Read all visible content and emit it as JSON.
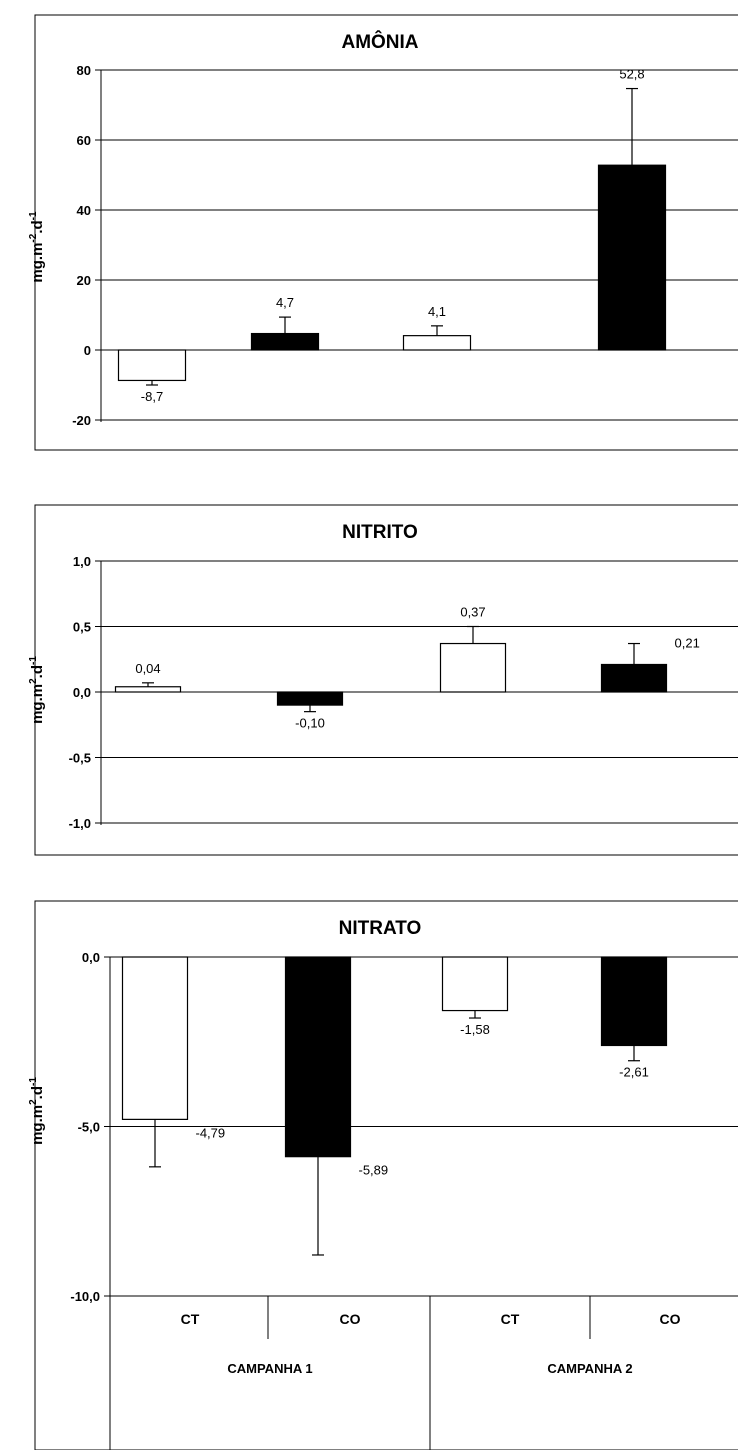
{
  "chart_data": [
    {
      "type": "bar",
      "title": "AMÔNIA",
      "ylabel": "mg.m-2.d-1",
      "ylabel_parts": {
        "base1": "mg.m",
        "sup1": "-2",
        "base2": ".d",
        "sup2": "-1"
      },
      "ylim": [
        -20,
        80
      ],
      "yticks": [
        -20,
        0,
        20,
        40,
        60,
        80
      ],
      "ytick_labels": [
        "-20",
        "0",
        "20",
        "40",
        "60",
        "80"
      ],
      "grid": true,
      "categories": [
        "CT",
        "CO",
        "CT",
        "CO"
      ],
      "groups": [
        "CAMPANHA 1",
        "CAMPANHA 2"
      ],
      "bar_colors": [
        "#ffffff",
        "#000000",
        "#ffffff",
        "#000000"
      ],
      "values": [
        -8.7,
        4.7,
        4.1,
        52.8
      ],
      "value_labels": [
        "-8,7",
        "4,7",
        "4,1",
        "52,8"
      ],
      "errors": [
        1.3,
        4.7,
        2.8,
        21.9
      ]
    },
    {
      "type": "bar",
      "title": "NITRITO",
      "ylabel": "mg.m2.d-1",
      "ylabel_parts": {
        "base1": "mg.m",
        "sup1": "2",
        "base2": ".d",
        "sup2": "-1"
      },
      "ylim": [
        -1.0,
        1.0
      ],
      "yticks": [
        -1.0,
        -0.5,
        0.0,
        0.5,
        1.0
      ],
      "ytick_labels": [
        "-1,0",
        "-0,5",
        "0,0",
        "0,5",
        "1,0"
      ],
      "grid": true,
      "categories": [
        "CT",
        "CO",
        "CT",
        "CO"
      ],
      "groups": [
        "CAMPANHA 1",
        "CAMPANHA 2"
      ],
      "bar_colors": [
        "#ffffff",
        "#000000",
        "#ffffff",
        "#000000"
      ],
      "values": [
        0.04,
        -0.1,
        0.37,
        0.21
      ],
      "value_labels": [
        "0,04",
        "-0,10",
        "0,37",
        "0,21"
      ],
      "errors": [
        0.03,
        0.05,
        0.13,
        0.16
      ]
    },
    {
      "type": "bar",
      "title": "NITRATO",
      "ylabel": "mg.m2.d-1",
      "ylabel_parts": {
        "base1": "mg.m",
        "sup1": "2",
        "base2": ".d",
        "sup2": "-1"
      },
      "ylim": [
        -10.0,
        0.0
      ],
      "yticks": [
        -10.0,
        -5.0,
        0.0
      ],
      "ytick_labels": [
        "-10,0",
        "-5,0",
        "0,0"
      ],
      "grid": true,
      "categories": [
        "CT",
        "CO",
        "CT",
        "CO"
      ],
      "groups": [
        "CAMPANHA 1",
        "CAMPANHA 2"
      ],
      "bar_colors": [
        "#ffffff",
        "#000000",
        "#ffffff",
        "#000000"
      ],
      "values": [
        -4.79,
        -5.89,
        -1.58,
        -2.61
      ],
      "value_labels": [
        "-4,79",
        "-5,89",
        "-1,58",
        "-2,61"
      ],
      "errors": [
        1.4,
        2.9,
        0.22,
        0.45
      ]
    }
  ]
}
